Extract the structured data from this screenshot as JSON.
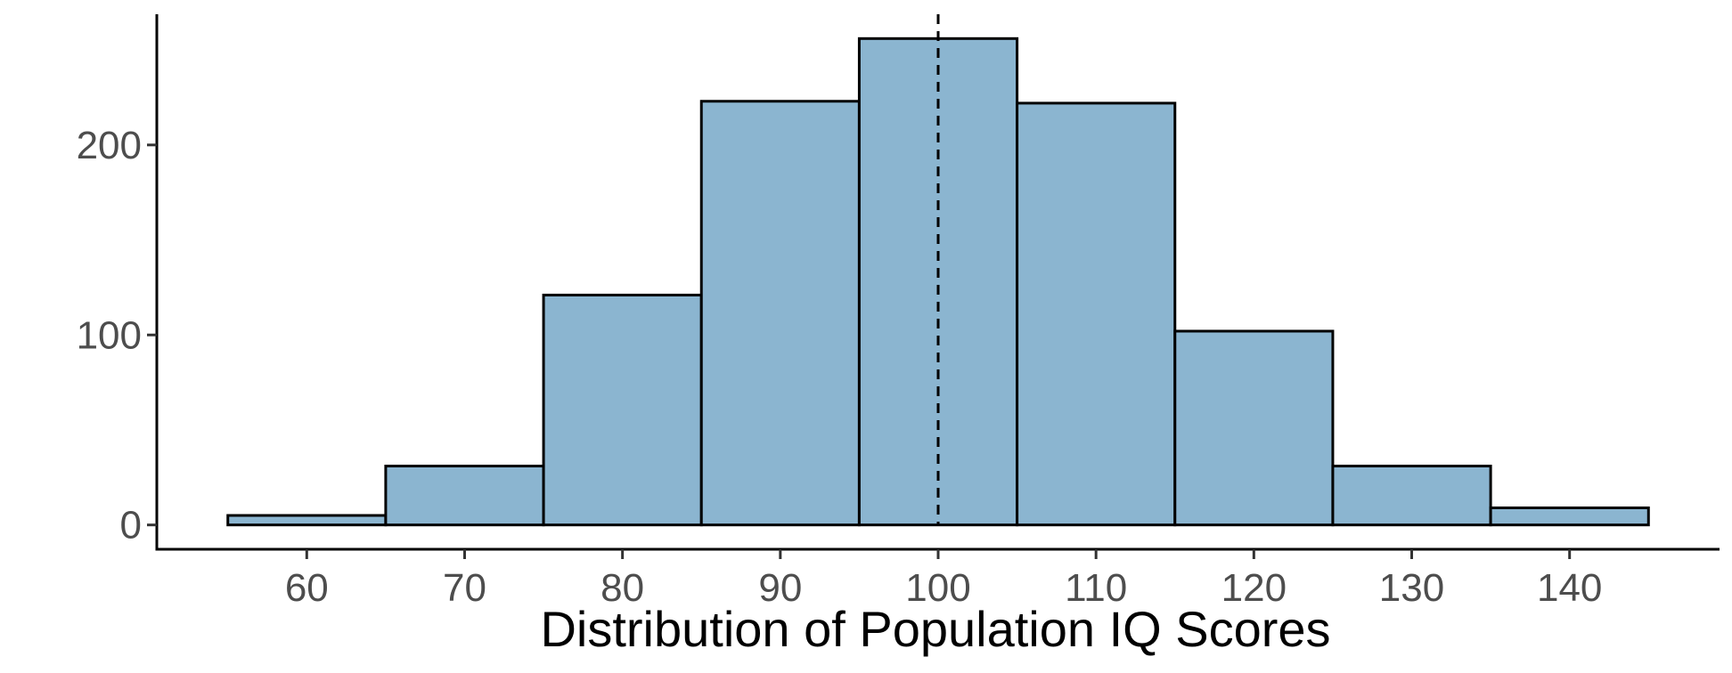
{
  "chart_data": {
    "type": "bar",
    "subtype": "histogram",
    "xlabel": "Distribution of Population IQ Scores",
    "ylabel": "",
    "bin_width": 10,
    "bins": [
      {
        "start": 55,
        "end": 65,
        "count": 5
      },
      {
        "start": 65,
        "end": 75,
        "count": 31
      },
      {
        "start": 75,
        "end": 85,
        "count": 121
      },
      {
        "start": 85,
        "end": 95,
        "count": 223
      },
      {
        "start": 95,
        "end": 105,
        "count": 256
      },
      {
        "start": 105,
        "end": 115,
        "count": 222
      },
      {
        "start": 115,
        "end": 125,
        "count": 102
      },
      {
        "start": 125,
        "end": 135,
        "count": 31
      },
      {
        "start": 135,
        "end": 145,
        "count": 9
      }
    ],
    "xlim": [
      50.5,
      149.5
    ],
    "ylim": [
      -12.8,
      268.8
    ],
    "x_ticks": [
      60,
      70,
      80,
      90,
      100,
      110,
      120,
      130,
      140
    ],
    "y_ticks": [
      0,
      100,
      200
    ],
    "reference_line": {
      "x": 100,
      "style": "dashed",
      "color": "#000000"
    },
    "bar_fill": "#8bb5d0",
    "bar_stroke": "#000000",
    "grid": false,
    "legend": "none"
  }
}
